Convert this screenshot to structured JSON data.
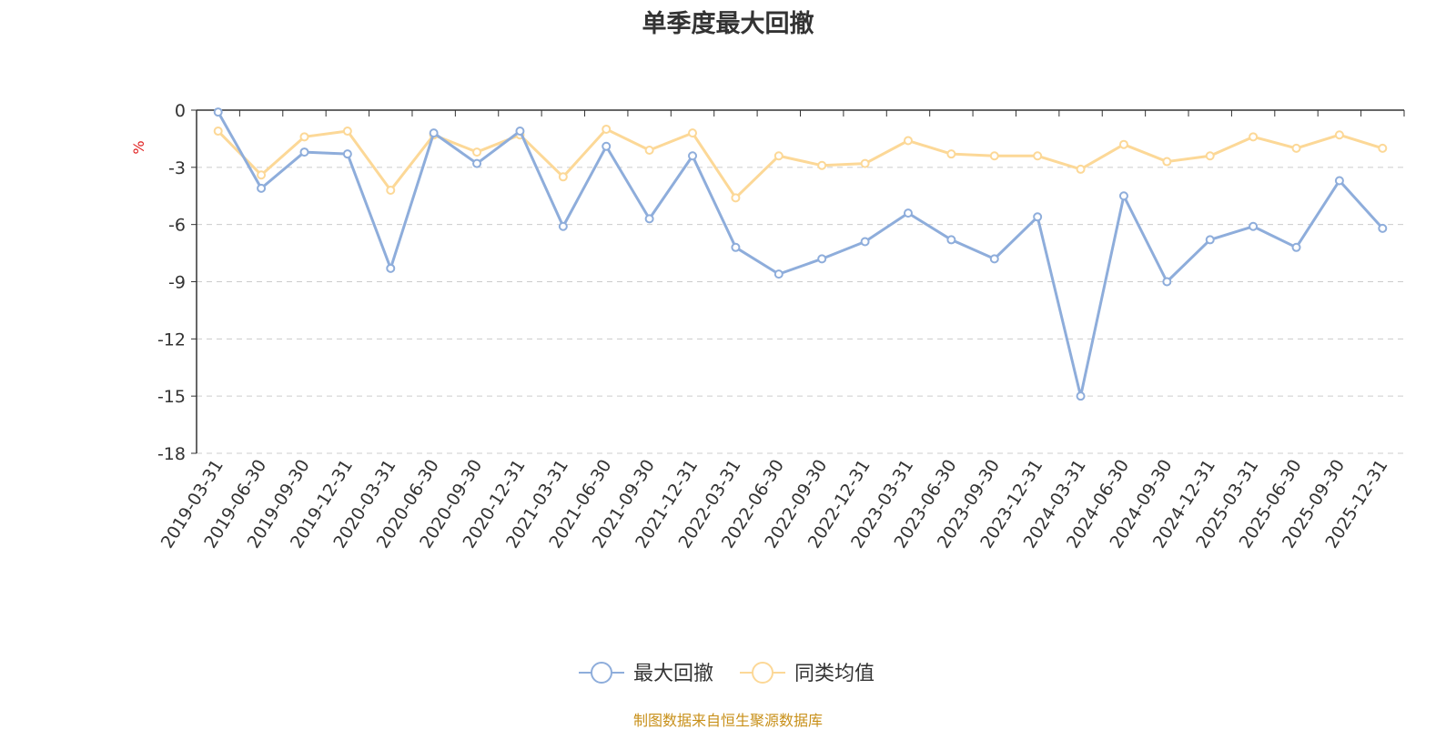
{
  "chart_data": {
    "type": "line",
    "title": "单季度最大回撤",
    "ylabel": "%",
    "ylim": [
      -18,
      0
    ],
    "yticks": [
      0,
      -3,
      -6,
      -9,
      -12,
      -15,
      -18
    ],
    "grid": "horizontal dashed",
    "legend_position": "bottom-center",
    "categories": [
      "2019-03-31",
      "2019-06-30",
      "2019-09-30",
      "2019-12-31",
      "2020-03-31",
      "2020-06-30",
      "2020-09-30",
      "2020-12-31",
      "2021-03-31",
      "2021-06-30",
      "2021-09-30",
      "2021-12-31",
      "2022-03-31",
      "2022-06-30",
      "2022-09-30",
      "2022-12-31",
      "2023-03-31",
      "2023-06-30",
      "2023-09-30",
      "2023-12-31",
      "2024-03-31",
      "2024-06-30",
      "2024-09-30",
      "2024-12-31",
      "2025-03-31",
      "2025-06-30",
      "2025-09-30",
      "2025-12-31"
    ],
    "series": [
      {
        "name": "最大回撤",
        "color": "#8eaddb",
        "values": [
          -0.1,
          -4.1,
          -2.2,
          -2.3,
          -8.3,
          -1.2,
          -2.8,
          -1.1,
          -6.1,
          -1.9,
          -5.7,
          -2.4,
          -7.2,
          -8.6,
          -7.8,
          -6.9,
          -5.4,
          -6.8,
          -7.8,
          -5.6,
          -15.0,
          -4.5,
          -9.0,
          -6.8,
          -6.1,
          -7.2,
          -3.7,
          -6.2
        ]
      },
      {
        "name": "同类均值",
        "color": "#fcd897",
        "values": [
          -1.1,
          -3.4,
          -1.4,
          -1.1,
          -4.2,
          -1.3,
          -2.2,
          -1.3,
          -3.5,
          -1.0,
          -2.1,
          -1.2,
          -4.6,
          -2.4,
          -2.9,
          -2.8,
          -1.6,
          -2.3,
          -2.4,
          -2.4,
          -3.1,
          -1.8,
          -2.7,
          -2.4,
          -1.4,
          -2.0,
          -1.3,
          -2.0
        ]
      }
    ]
  },
  "source_note": "制图数据来自恒生聚源数据库"
}
